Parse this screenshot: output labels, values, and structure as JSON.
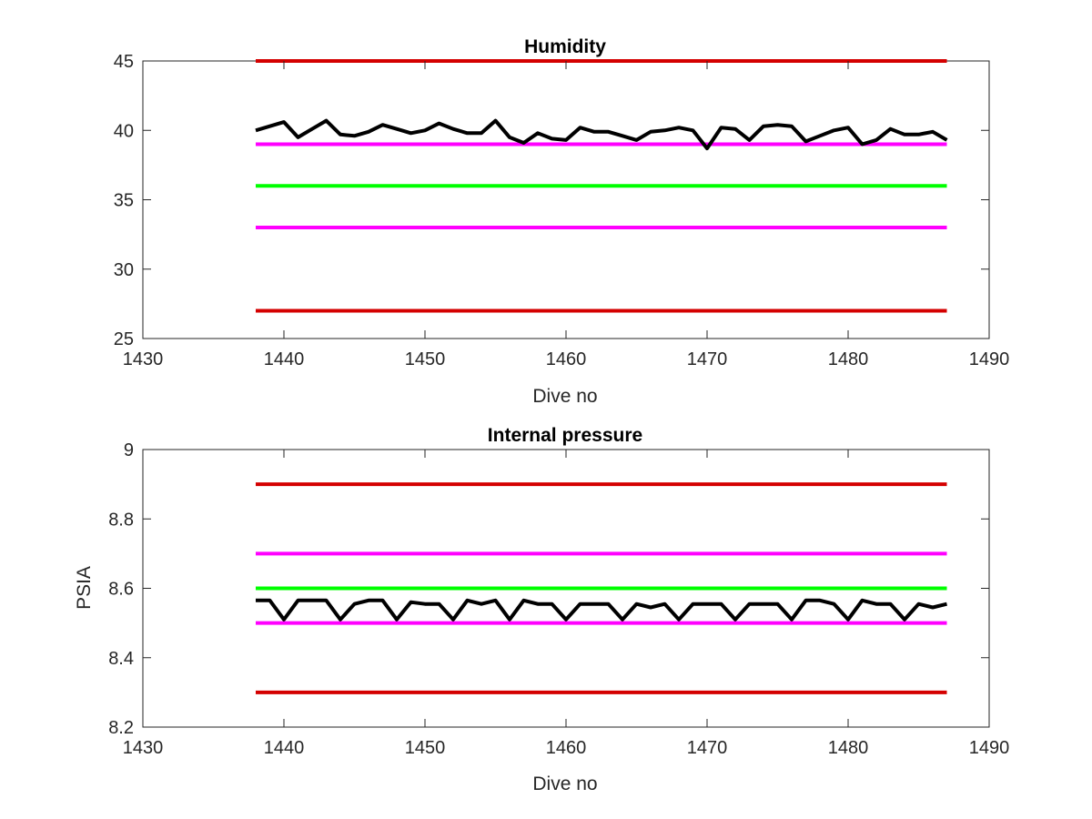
{
  "chart_data": [
    {
      "type": "line",
      "title": "Humidity",
      "xlabel": "Dive no",
      "ylabel": "",
      "xlim": [
        1430,
        1490
      ],
      "ylim": [
        25,
        45
      ],
      "x_ticks": [
        1430,
        1440,
        1450,
        1460,
        1470,
        1480,
        1490
      ],
      "y_ticks": [
        25,
        30,
        35,
        40,
        45
      ],
      "x_tick_labels": [
        "1430",
        "1440",
        "1450",
        "1460",
        "1470",
        "1480",
        "1490"
      ],
      "y_tick_labels": [
        "25",
        "30",
        "35",
        "40",
        "45"
      ],
      "grid": false,
      "reference_lines": [
        {
          "y": 45,
          "x_range": [
            1438,
            1487
          ],
          "color": "#d40000"
        },
        {
          "y": 39,
          "x_range": [
            1438,
            1487
          ],
          "color": "#ff00ff"
        },
        {
          "y": 36,
          "x_range": [
            1438,
            1487
          ],
          "color": "#00ff00"
        },
        {
          "y": 33,
          "x_range": [
            1438,
            1487
          ],
          "color": "#ff00ff"
        },
        {
          "y": 27,
          "x_range": [
            1438,
            1487
          ],
          "color": "#d40000"
        }
      ],
      "series": [
        {
          "color": "#000000",
          "x": [
            1438,
            1439,
            1440,
            1441,
            1442,
            1443,
            1444,
            1445,
            1446,
            1447,
            1448,
            1449,
            1450,
            1451,
            1452,
            1453,
            1454,
            1455,
            1456,
            1457,
            1458,
            1459,
            1460,
            1461,
            1462,
            1463,
            1464,
            1465,
            1466,
            1467,
            1468,
            1469,
            1470,
            1471,
            1472,
            1473,
            1474,
            1475,
            1476,
            1477,
            1478,
            1479,
            1480,
            1481,
            1482,
            1483,
            1484,
            1485,
            1486,
            1487
          ],
          "values": [
            40.0,
            40.3,
            40.6,
            39.5,
            40.1,
            40.7,
            39.7,
            39.6,
            39.9,
            40.4,
            40.1,
            39.8,
            40.0,
            40.5,
            40.1,
            39.8,
            39.8,
            40.7,
            39.5,
            39.1,
            39.8,
            39.4,
            39.3,
            40.2,
            39.9,
            39.9,
            39.6,
            39.3,
            39.9,
            40.0,
            40.2,
            40.0,
            38.7,
            40.2,
            40.1,
            39.3,
            40.3,
            40.4,
            40.3,
            39.2,
            39.6,
            40.0,
            40.2,
            39.0,
            39.3,
            40.1,
            39.7,
            39.7,
            39.9,
            39.3
          ]
        }
      ]
    },
    {
      "type": "line",
      "title": "Internal pressure",
      "xlabel": "Dive no",
      "ylabel": "PSIA",
      "xlim": [
        1430,
        1490
      ],
      "ylim": [
        8.2,
        9.0
      ],
      "x_ticks": [
        1430,
        1440,
        1450,
        1460,
        1470,
        1480,
        1490
      ],
      "y_ticks": [
        8.2,
        8.4,
        8.6,
        8.8,
        9.0
      ],
      "x_tick_labels": [
        "1430",
        "1440",
        "1450",
        "1460",
        "1470",
        "1480",
        "1490"
      ],
      "y_tick_labels": [
        "8.2",
        "8.4",
        "8.6",
        "8.8",
        "9"
      ],
      "grid": false,
      "reference_lines": [
        {
          "y": 8.9,
          "x_range": [
            1438,
            1487
          ],
          "color": "#d40000"
        },
        {
          "y": 8.7,
          "x_range": [
            1438,
            1487
          ],
          "color": "#ff00ff"
        },
        {
          "y": 8.6,
          "x_range": [
            1438,
            1487
          ],
          "color": "#00ff00"
        },
        {
          "y": 8.5,
          "x_range": [
            1438,
            1487
          ],
          "color": "#ff00ff"
        },
        {
          "y": 8.3,
          "x_range": [
            1438,
            1487
          ],
          "color": "#d40000"
        }
      ],
      "series": [
        {
          "color": "#000000",
          "x": [
            1438,
            1439,
            1440,
            1441,
            1442,
            1443,
            1444,
            1445,
            1446,
            1447,
            1448,
            1449,
            1450,
            1451,
            1452,
            1453,
            1454,
            1455,
            1456,
            1457,
            1458,
            1459,
            1460,
            1461,
            1462,
            1463,
            1464,
            1465,
            1466,
            1467,
            1468,
            1469,
            1470,
            1471,
            1472,
            1473,
            1474,
            1475,
            1476,
            1477,
            1478,
            1479,
            1480,
            1481,
            1482,
            1483,
            1484,
            1485,
            1486,
            1487
          ],
          "values": [
            8.565,
            8.565,
            8.51,
            8.565,
            8.565,
            8.565,
            8.51,
            8.555,
            8.565,
            8.565,
            8.51,
            8.56,
            8.555,
            8.555,
            8.51,
            8.565,
            8.555,
            8.565,
            8.51,
            8.565,
            8.555,
            8.555,
            8.51,
            8.555,
            8.555,
            8.555,
            8.51,
            8.555,
            8.545,
            8.555,
            8.51,
            8.555,
            8.555,
            8.555,
            8.51,
            8.555,
            8.555,
            8.555,
            8.51,
            8.565,
            8.565,
            8.555,
            8.51,
            8.565,
            8.555,
            8.555,
            8.51,
            8.555,
            8.545,
            8.555
          ]
        }
      ]
    }
  ]
}
